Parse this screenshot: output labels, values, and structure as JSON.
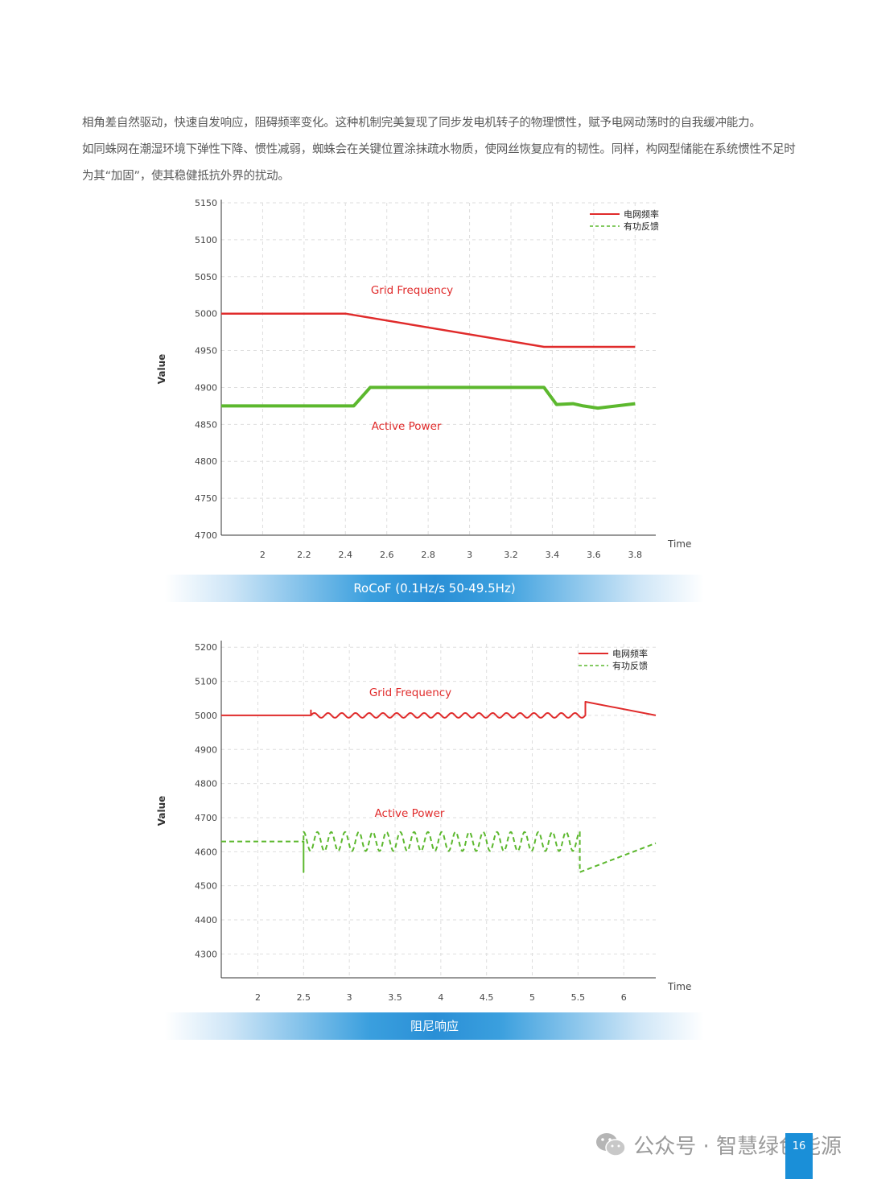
{
  "paragraphs": [
    "相角差自然驱动，快速自发响应，阻碍频率变化。这种机制完美复现了同步发电机转子的物理惯性，赋予电网动荡时的自我缓冲能力。",
    "如同蛛网在潮湿环境下弹性下降、惯性减弱，蜘蛛会在关键位置涂抹疏水物质，使网丝恢复应有的韧性。同样，构网型储能在系统惯性不足时为其“加固”，使其稳健抵抗外界的扰动。"
  ],
  "captions": [
    "RoCoF (0.1Hz/s 50-49.5Hz)",
    "阻尼响应"
  ],
  "footer": {
    "brand": "公众号 · 智慧绿色能源",
    "page": "16"
  },
  "colors": {
    "grid_frequency": "#e02b2b",
    "active_power": "#5cb82e",
    "caption_band": "#2a8fd6"
  },
  "chart_data": [
    {
      "type": "line",
      "title": "",
      "xlabel": "Time",
      "ylabel": "Value",
      "xlim": [
        1.8,
        3.9
      ],
      "ylim": [
        4700,
        5150
      ],
      "xticks": [
        "2",
        "2.2",
        "2.4",
        "2.6",
        "2.8",
        "3",
        "3.2",
        "3.4",
        "3.6",
        "3.8"
      ],
      "yticks": [
        "5150",
        "5100",
        "5050",
        "5000",
        "4950",
        "4900",
        "4850",
        "4800",
        "4750",
        "4700"
      ],
      "grid": true,
      "legend": {
        "position": "top-right",
        "entries": [
          "电网频率",
          "有功反馈"
        ]
      },
      "annotations": [
        "Grid Frequency",
        "Active Power"
      ],
      "series": [
        {
          "name": "电网频率",
          "style": "solid",
          "x": [
            1.8,
            2.4,
            3.36,
            3.8
          ],
          "y": [
            5000,
            5000,
            4955,
            4955
          ]
        },
        {
          "name": "有功反馈",
          "style": "solid",
          "x": [
            1.8,
            2.44,
            2.52,
            3.36,
            3.42,
            3.5,
            3.55,
            3.62,
            3.8
          ],
          "y": [
            4875,
            4875,
            4900,
            4900,
            4877,
            4878,
            4875,
            4872,
            4878
          ]
        }
      ]
    },
    {
      "type": "line",
      "title": "",
      "xlabel": "Time",
      "ylabel": "Value",
      "xlim": [
        1.6,
        6.35
      ],
      "ylim": [
        4230,
        5210
      ],
      "xticks": [
        "2",
        "2.5",
        "3",
        "3.5",
        "4",
        "4.5",
        "5",
        "5.5",
        "6"
      ],
      "yticks": [
        "5200",
        "5100",
        "5000",
        "4900",
        "4800",
        "4700",
        "4600",
        "4500",
        "4400",
        "4300"
      ],
      "grid": true,
      "legend": {
        "position": "top-right",
        "entries": [
          "电网频率",
          "有功反馈"
        ]
      },
      "annotations": [
        "Grid Frequency",
        "Active Power"
      ],
      "series": [
        {
          "name": "电网频率",
          "style": "solid",
          "x": [
            1.6,
            2.58,
            2.58,
            5.58,
            5.58,
            6.35
          ],
          "y": [
            5000,
            5000,
            5015,
            5000,
            5040,
            5000
          ],
          "oscillation": {
            "from": 2.58,
            "to": 5.58,
            "amplitude": 7,
            "cycles": 20
          }
        },
        {
          "name": "有功反馈",
          "style": "dashed",
          "x": [
            1.6,
            2.5,
            2.5,
            5.52,
            5.52,
            6.35
          ],
          "y": [
            4630,
            4630,
            4540,
            4630,
            4540,
            4625
          ],
          "oscillation": {
            "from": 2.5,
            "to": 5.52,
            "amplitude": 28,
            "cycles": 20
          }
        }
      ]
    }
  ]
}
